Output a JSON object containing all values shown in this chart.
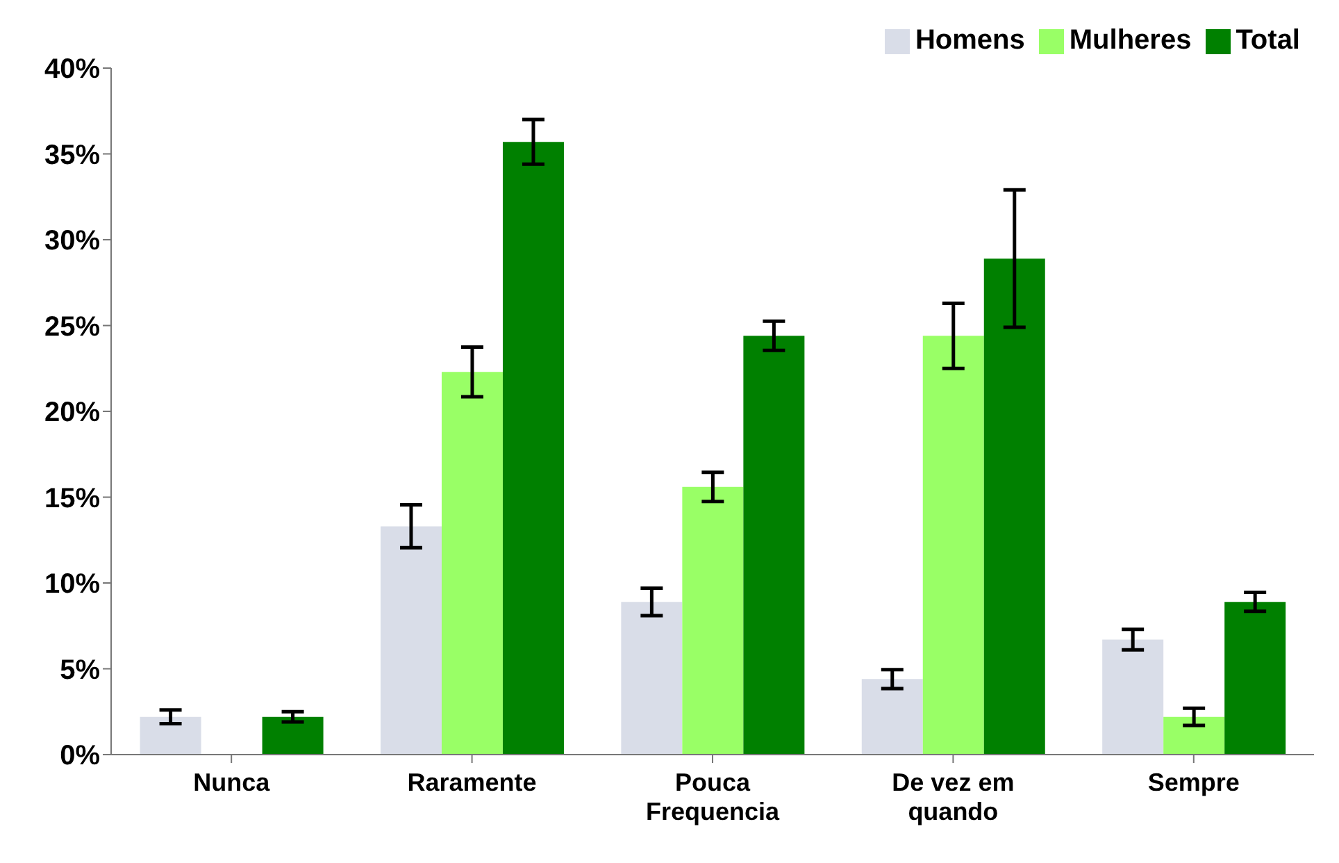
{
  "chart_data": {
    "type": "bar",
    "categories": [
      "Nunca",
      "Raramente",
      "Pouca Frequencia",
      "De vez em quando",
      "Sempre"
    ],
    "series": [
      {
        "name": "Homens",
        "color": "#d9dde8",
        "values": [
          2.2,
          13.3,
          8.9,
          4.4,
          6.7
        ],
        "errors": [
          0.4,
          1.25,
          0.8,
          0.55,
          0.6
        ]
      },
      {
        "name": "Mulheres",
        "color": "#99ff66",
        "values": [
          0,
          22.3,
          15.6,
          24.4,
          2.2
        ],
        "errors": [
          null,
          1.45,
          0.85,
          1.9,
          0.5
        ]
      },
      {
        "name": "Total",
        "color": "#008000",
        "values": [
          2.2,
          35.7,
          24.4,
          28.9,
          8.9
        ],
        "errors": [
          0.3,
          1.3,
          0.85,
          4,
          0.55
        ]
      }
    ],
    "ylim": [
      0,
      40
    ],
    "yticks": [
      {
        "value": 0,
        "label": "0%"
      },
      {
        "value": 5,
        "label": "5%"
      },
      {
        "value": 10,
        "label": "10%"
      },
      {
        "value": 15,
        "label": "15%"
      },
      {
        "value": 20,
        "label": "20%"
      },
      {
        "value": 25,
        "label": "25%"
      },
      {
        "value": 30,
        "label": "30%"
      },
      {
        "value": 35,
        "label": "35%"
      },
      {
        "value": 40,
        "label": "40%"
      }
    ],
    "grid": false,
    "legend": "top right"
  }
}
